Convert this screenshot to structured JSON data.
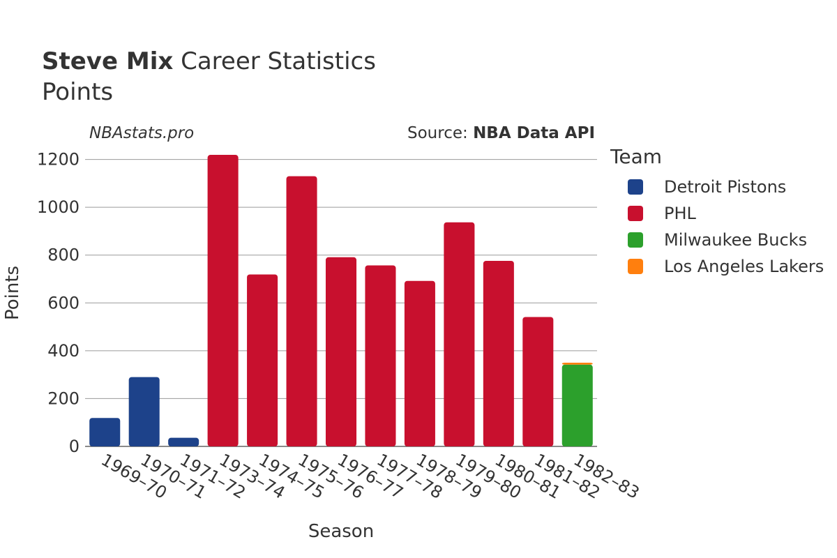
{
  "header": {
    "player_name": "Steve Mix",
    "title_suffix": "Career Statistics",
    "subtitle": "Points"
  },
  "credit": "NBAstats.pro",
  "source": {
    "prefix": "Source: ",
    "name": "NBA Data API"
  },
  "legend": {
    "title": "Team",
    "items": [
      {
        "label": "Detroit Pistons",
        "color": "#1d428a"
      },
      {
        "label": "PHL",
        "color": "#c8102e"
      },
      {
        "label": "Milwaukee Bucks",
        "color": "#2ca02c"
      },
      {
        "label": "Los Angeles Lakers",
        "color": "#ff7f0e"
      }
    ]
  },
  "chart_data": {
    "type": "bar",
    "stacked": true,
    "xlabel": "Season",
    "ylabel": "Points",
    "ylim": [
      0,
      1260
    ],
    "yticks": [
      0,
      200,
      400,
      600,
      800,
      1000,
      1200
    ],
    "grid": true,
    "legend_position": "right",
    "categories": [
      "1969–70",
      "1970–71",
      "1971–72",
      "1973–74",
      "1974–75",
      "1975–76",
      "1976–77",
      "1977–78",
      "1978–79",
      "1979–80",
      "1980–81",
      "1981–82",
      "1982–83"
    ],
    "series": [
      {
        "name": "Detroit Pistons",
        "color": "#1d428a",
        "values": [
          119,
          290,
          36,
          null,
          null,
          null,
          null,
          null,
          null,
          null,
          null,
          null,
          null
        ]
      },
      {
        "name": "PHL",
        "color": "#c8102e",
        "values": [
          null,
          null,
          null,
          1219,
          719,
          1130,
          791,
          757,
          692,
          937,
          776,
          541,
          null
        ]
      },
      {
        "name": "Milwaukee Bucks",
        "color": "#2ca02c",
        "values": [
          null,
          null,
          null,
          null,
          null,
          null,
          null,
          null,
          null,
          null,
          null,
          null,
          342
        ]
      },
      {
        "name": "Los Angeles Lakers",
        "color": "#ff7f0e",
        "values": [
          null,
          null,
          null,
          null,
          null,
          null,
          null,
          null,
          null,
          null,
          null,
          null,
          8
        ]
      }
    ]
  }
}
